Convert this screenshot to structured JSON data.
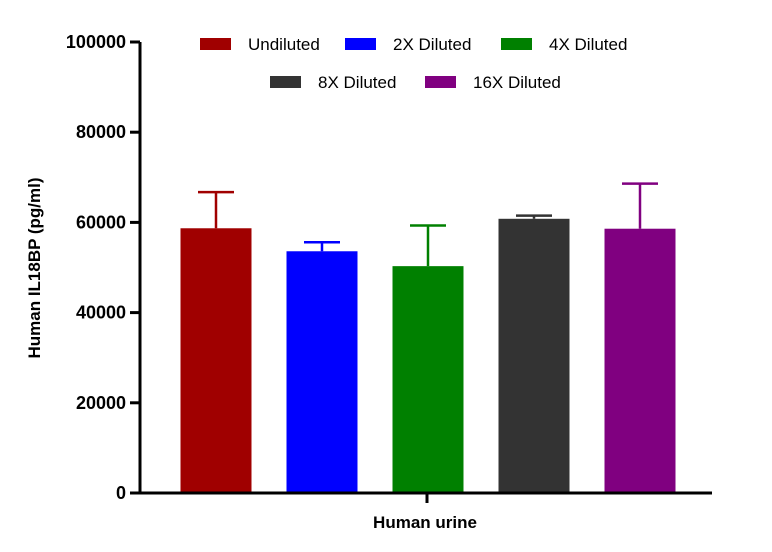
{
  "chart_data": {
    "type": "bar",
    "title": "",
    "xlabel": "Human urine",
    "ylabel": "Human IL18BP (pg/ml)",
    "ylim": [
      0,
      100000
    ],
    "yticks": [
      "0",
      "20000",
      "40000",
      "60000",
      "80000",
      "100000"
    ],
    "grid": false,
    "legend_position": "top",
    "series": [
      {
        "name": "Undiluted",
        "value": 58700,
        "error": 8000,
        "color": "#a00000"
      },
      {
        "name": "2X Diluted",
        "value": 53600,
        "error": 2000,
        "color": "#0000ff"
      },
      {
        "name": "4X Diluted",
        "value": 50300,
        "error": 9000,
        "color": "#008000"
      },
      {
        "name": "8X Diluted",
        "value": 60800,
        "error": 700,
        "color": "#333333"
      },
      {
        "name": "16X Diluted",
        "value": 58600,
        "error": 10000,
        "color": "#800080"
      }
    ]
  }
}
